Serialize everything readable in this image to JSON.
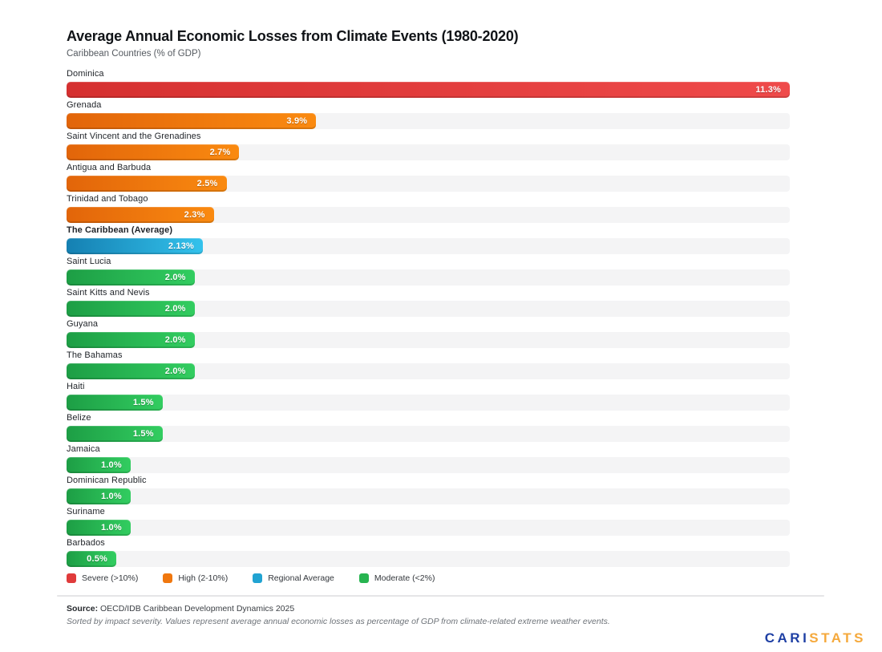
{
  "header": {
    "title": "Average Annual Economic Losses from Climate Events (1980-2020)",
    "subtitle": "Caribbean Countries (% of GDP)"
  },
  "chart_data": {
    "type": "bar",
    "orientation": "horizontal",
    "title": "Average Annual Economic Losses from Climate Events (1980-2020)",
    "subtitle": "Caribbean Countries (% of GDP)",
    "unit": "% of GDP",
    "xlim": [
      0,
      11.3
    ],
    "grid": false,
    "value_label_position": "inside-right",
    "sort": "descending by value (impact severity)",
    "bars": [
      {
        "label": "Dominica",
        "value": 11.3,
        "display": "11.3%",
        "severity": "severe",
        "bold": false
      },
      {
        "label": "Grenada",
        "value": 3.9,
        "display": "3.9%",
        "severity": "high",
        "bold": false
      },
      {
        "label": "Saint Vincent and the Grenadines",
        "value": 2.7,
        "display": "2.7%",
        "severity": "high",
        "bold": false
      },
      {
        "label": "Antigua and Barbuda",
        "value": 2.5,
        "display": "2.5%",
        "severity": "high",
        "bold": false
      },
      {
        "label": "Trinidad and Tobago",
        "value": 2.3,
        "display": "2.3%",
        "severity": "high",
        "bold": false
      },
      {
        "label": "The Caribbean (Average)",
        "value": 2.13,
        "display": "2.13%",
        "severity": "average",
        "bold": true
      },
      {
        "label": "Saint Lucia",
        "value": 2.0,
        "display": "2.0%",
        "severity": "moderate",
        "bold": false
      },
      {
        "label": "Saint Kitts and Nevis",
        "value": 2.0,
        "display": "2.0%",
        "severity": "moderate",
        "bold": false
      },
      {
        "label": "Guyana",
        "value": 2.0,
        "display": "2.0%",
        "severity": "moderate",
        "bold": false
      },
      {
        "label": "The Bahamas",
        "value": 2.0,
        "display": "2.0%",
        "severity": "moderate",
        "bold": false
      },
      {
        "label": "Haiti",
        "value": 1.5,
        "display": "1.5%",
        "severity": "moderate",
        "bold": false
      },
      {
        "label": "Belize",
        "value": 1.5,
        "display": "1.5%",
        "severity": "moderate",
        "bold": false
      },
      {
        "label": "Jamaica",
        "value": 1.0,
        "display": "1.0%",
        "severity": "moderate",
        "bold": false
      },
      {
        "label": "Dominican Republic",
        "value": 1.0,
        "display": "1.0%",
        "severity": "moderate",
        "bold": false
      },
      {
        "label": "Suriname",
        "value": 1.0,
        "display": "1.0%",
        "severity": "moderate",
        "bold": false
      },
      {
        "label": "Barbados",
        "value": 0.5,
        "display": "0.5%",
        "severity": "moderate",
        "bold": false
      }
    ]
  },
  "colors": {
    "severe": {
      "start": "#d53030",
      "end": "#ef4a4a",
      "legend": "#e03b3b"
    },
    "high": {
      "start": "#e2650a",
      "end": "#fa8a10",
      "legend": "#f0770e"
    },
    "average": {
      "start": "#1580b2",
      "end": "#33c2ec",
      "legend": "#21a3d2"
    },
    "moderate": {
      "start": "#1d9e45",
      "end": "#32cd60",
      "legend": "#27b450"
    },
    "track": "#f4f4f5"
  },
  "legend": {
    "items": [
      {
        "label": "Severe (>10%)",
        "severity": "severe"
      },
      {
        "label": "High (2-10%)",
        "severity": "high"
      },
      {
        "label": "Regional Average",
        "severity": "average"
      },
      {
        "label": "Moderate (<2%)",
        "severity": "moderate"
      }
    ]
  },
  "footer": {
    "source_label": "Source:",
    "source_text": " OECD/IDB Caribbean Development Dynamics 2025",
    "note": "Sorted by impact severity. Values represent average annual economic losses as percentage of GDP from climate-related extreme weather events."
  },
  "branding": {
    "name_primary": "CARI",
    "name_secondary": "STATS",
    "primary_color": "#1e3fa4",
    "secondary_color": "#f5a93c"
  }
}
